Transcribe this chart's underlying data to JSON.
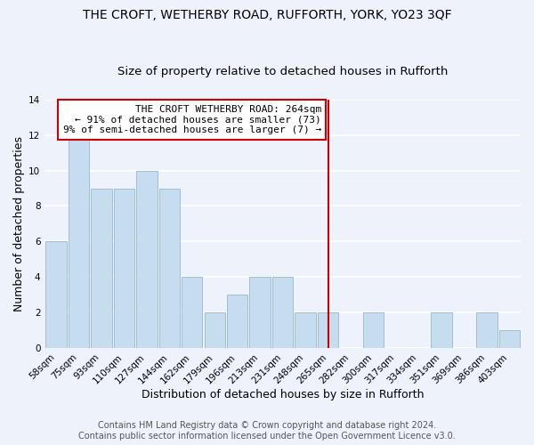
{
  "title": "THE CROFT, WETHERBY ROAD, RUFFORTH, YORK, YO23 3QF",
  "subtitle": "Size of property relative to detached houses in Rufforth",
  "xlabel": "Distribution of detached houses by size in Rufforth",
  "ylabel": "Number of detached properties",
  "categories": [
    "58sqm",
    "75sqm",
    "93sqm",
    "110sqm",
    "127sqm",
    "144sqm",
    "162sqm",
    "179sqm",
    "196sqm",
    "213sqm",
    "231sqm",
    "248sqm",
    "265sqm",
    "282sqm",
    "300sqm",
    "317sqm",
    "334sqm",
    "351sqm",
    "369sqm",
    "386sqm",
    "403sqm"
  ],
  "bar_values": [
    6,
    12,
    9,
    9,
    10,
    9,
    4,
    2,
    3,
    4,
    4,
    2,
    2,
    0,
    2,
    0,
    0,
    2,
    0,
    2,
    1
  ],
  "bar_color": "#c6ddf0",
  "bar_edge_color": "#a0bdd8",
  "vline_x_idx": 12,
  "vline_color": "#cc0000",
  "ylim": [
    0,
    14
  ],
  "yticks": [
    0,
    2,
    4,
    6,
    8,
    10,
    12,
    14
  ],
  "annotation_title": "THE CROFT WETHERBY ROAD: 264sqm",
  "annotation_line2": "← 91% of detached houses are smaller (73)",
  "annotation_line3": "9% of semi-detached houses are larger (7) →",
  "annotation_box_facecolor": "#ffffff",
  "annotation_box_edgecolor": "#cc0000",
  "footer_line1": "Contains HM Land Registry data © Crown copyright and database right 2024.",
  "footer_line2": "Contains public sector information licensed under the Open Government Licence v3.0.",
  "background_color": "#eef2fb",
  "grid_color": "#ffffff",
  "title_fontsize": 10,
  "subtitle_fontsize": 9.5,
  "axis_label_fontsize": 9,
  "tick_fontsize": 7.5,
  "annotation_fontsize": 8,
  "footer_fontsize": 7
}
